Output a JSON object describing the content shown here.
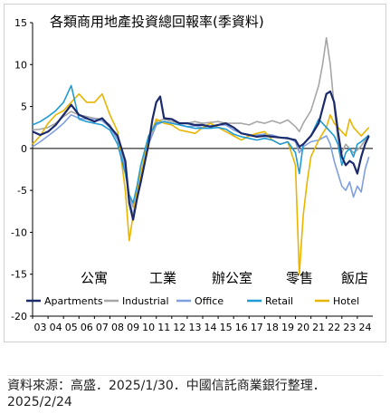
{
  "chart_data": {
    "type": "line",
    "title": "各類商用地產投資總回報率(季資料)",
    "xlabel": "",
    "ylabel": "",
    "ylim": [
      -20,
      15
    ],
    "yticks": [
      15,
      10,
      5,
      0,
      -5,
      -10,
      -15,
      -20
    ],
    "xlim": [
      2003.0,
      2025.0
    ],
    "xtick_labels": [
      "03",
      "04",
      "05",
      "06",
      "07",
      "08",
      "09",
      "10",
      "11",
      "12",
      "13",
      "14",
      "15",
      "16",
      "17",
      "18",
      "19",
      "20",
      "21",
      "22",
      "23",
      "24"
    ],
    "category_labels": [
      "公寓",
      "工業",
      "辦公室",
      "零售",
      "飯店"
    ],
    "grid": false,
    "legend_position": "bottom",
    "series": [
      {
        "name": "Apartments",
        "color": "#1b2a6b",
        "points": [
          [
            2003.0,
            2.0
          ],
          [
            2003.5,
            1.6
          ],
          [
            2004.0,
            2.0
          ],
          [
            2004.5,
            2.8
          ],
          [
            2005.0,
            4.0
          ],
          [
            2005.5,
            5.2
          ],
          [
            2006.0,
            4.0
          ],
          [
            2006.5,
            3.6
          ],
          [
            2007.0,
            3.2
          ],
          [
            2007.5,
            3.6
          ],
          [
            2008.0,
            2.6
          ],
          [
            2008.5,
            1.5
          ],
          [
            2009.0,
            -1.5
          ],
          [
            2009.25,
            -6.5
          ],
          [
            2009.5,
            -8.5
          ],
          [
            2009.75,
            -6.0
          ],
          [
            2010.0,
            -4.0
          ],
          [
            2010.5,
            0.5
          ],
          [
            2010.75,
            3.5
          ],
          [
            2011.0,
            5.5
          ],
          [
            2011.25,
            6.2
          ],
          [
            2011.5,
            3.6
          ],
          [
            2012.0,
            3.5
          ],
          [
            2012.5,
            3.0
          ],
          [
            2013.0,
            3.0
          ],
          [
            2013.5,
            2.8
          ],
          [
            2014.0,
            2.8
          ],
          [
            2014.5,
            2.6
          ],
          [
            2015.0,
            2.8
          ],
          [
            2015.5,
            3.0
          ],
          [
            2016.0,
            2.5
          ],
          [
            2016.5,
            1.8
          ],
          [
            2017.0,
            1.6
          ],
          [
            2017.5,
            1.4
          ],
          [
            2018.0,
            1.5
          ],
          [
            2018.5,
            1.4
          ],
          [
            2019.0,
            1.3
          ],
          [
            2019.5,
            1.2
          ],
          [
            2020.0,
            1.0
          ],
          [
            2020.25,
            0.2
          ],
          [
            2020.5,
            0.5
          ],
          [
            2021.0,
            1.5
          ],
          [
            2021.5,
            3.0
          ],
          [
            2022.0,
            6.5
          ],
          [
            2022.25,
            6.8
          ],
          [
            2022.5,
            5.5
          ],
          [
            2022.75,
            2.0
          ],
          [
            2023.0,
            -1.0
          ],
          [
            2023.25,
            -2.0
          ],
          [
            2023.5,
            -1.5
          ],
          [
            2023.75,
            -1.8
          ],
          [
            2024.0,
            -3.0
          ],
          [
            2024.25,
            -1.0
          ],
          [
            2024.5,
            0.5
          ],
          [
            2024.75,
            1.5
          ]
        ]
      },
      {
        "name": "Industrial",
        "color": "#a6a6a6",
        "points": [
          [
            2003.0,
            2.2
          ],
          [
            2003.5,
            2.3
          ],
          [
            2004.0,
            2.5
          ],
          [
            2004.5,
            3.0
          ],
          [
            2005.0,
            3.8
          ],
          [
            2005.5,
            4.4
          ],
          [
            2006.0,
            4.0
          ],
          [
            2006.5,
            3.8
          ],
          [
            2007.0,
            3.6
          ],
          [
            2007.5,
            3.5
          ],
          [
            2008.0,
            2.8
          ],
          [
            2008.5,
            1.2
          ],
          [
            2009.0,
            -2.0
          ],
          [
            2009.25,
            -5.5
          ],
          [
            2009.5,
            -7.0
          ],
          [
            2009.75,
            -5.5
          ],
          [
            2010.0,
            -3.0
          ],
          [
            2010.5,
            1.0
          ],
          [
            2011.0,
            3.2
          ],
          [
            2011.5,
            3.5
          ],
          [
            2012.0,
            3.2
          ],
          [
            2012.5,
            3.0
          ],
          [
            2013.0,
            3.0
          ],
          [
            2013.5,
            3.2
          ],
          [
            2014.0,
            3.0
          ],
          [
            2014.5,
            3.1
          ],
          [
            2015.0,
            3.2
          ],
          [
            2015.5,
            3.0
          ],
          [
            2016.0,
            3.0
          ],
          [
            2016.5,
            3.0
          ],
          [
            2017.0,
            2.8
          ],
          [
            2017.5,
            3.2
          ],
          [
            2018.0,
            3.0
          ],
          [
            2018.5,
            3.3
          ],
          [
            2019.0,
            3.0
          ],
          [
            2019.5,
            3.4
          ],
          [
            2020.0,
            2.6
          ],
          [
            2020.25,
            2.0
          ],
          [
            2020.5,
            3.0
          ],
          [
            2021.0,
            4.5
          ],
          [
            2021.5,
            7.5
          ],
          [
            2021.75,
            10.0
          ],
          [
            2022.0,
            13.2
          ],
          [
            2022.25,
            10.0
          ],
          [
            2022.5,
            5.0
          ],
          [
            2022.75,
            1.0
          ],
          [
            2023.0,
            -0.5
          ],
          [
            2023.25,
            0.5
          ],
          [
            2023.5,
            0.0
          ],
          [
            2023.75,
            -0.5
          ],
          [
            2024.0,
            -0.2
          ],
          [
            2024.25,
            0.3
          ],
          [
            2024.5,
            1.0
          ],
          [
            2024.75,
            1.4
          ]
        ]
      },
      {
        "name": "Office",
        "color": "#7f9fe0",
        "points": [
          [
            2003.0,
            0.2
          ],
          [
            2003.5,
            0.8
          ],
          [
            2004.0,
            1.5
          ],
          [
            2004.5,
            2.2
          ],
          [
            2005.0,
            3.0
          ],
          [
            2005.5,
            4.0
          ],
          [
            2006.0,
            3.6
          ],
          [
            2006.5,
            3.5
          ],
          [
            2007.0,
            3.5
          ],
          [
            2007.5,
            3.3
          ],
          [
            2008.0,
            2.5
          ],
          [
            2008.5,
            1.0
          ],
          [
            2009.0,
            -2.5
          ],
          [
            2009.25,
            -6.0
          ],
          [
            2009.5,
            -8.0
          ],
          [
            2009.75,
            -6.0
          ],
          [
            2010.0,
            -3.5
          ],
          [
            2010.5,
            0.5
          ],
          [
            2011.0,
            2.8
          ],
          [
            2011.5,
            3.2
          ],
          [
            2012.0,
            3.0
          ],
          [
            2012.5,
            2.8
          ],
          [
            2013.0,
            2.6
          ],
          [
            2013.5,
            2.7
          ],
          [
            2014.0,
            2.5
          ],
          [
            2014.5,
            2.7
          ],
          [
            2015.0,
            2.8
          ],
          [
            2015.5,
            2.8
          ],
          [
            2016.0,
            2.2
          ],
          [
            2016.5,
            1.8
          ],
          [
            2017.0,
            1.6
          ],
          [
            2017.5,
            1.6
          ],
          [
            2018.0,
            1.7
          ],
          [
            2018.5,
            1.6
          ],
          [
            2019.0,
            1.3
          ],
          [
            2019.5,
            1.3
          ],
          [
            2020.0,
            0.8
          ],
          [
            2020.25,
            -0.5
          ],
          [
            2020.5,
            0.2
          ],
          [
            2021.0,
            0.8
          ],
          [
            2021.5,
            1.0
          ],
          [
            2022.0,
            1.5
          ],
          [
            2022.25,
            0.5
          ],
          [
            2022.5,
            -1.5
          ],
          [
            2022.75,
            -3.0
          ],
          [
            2023.0,
            -4.5
          ],
          [
            2023.25,
            -5.0
          ],
          [
            2023.5,
            -4.0
          ],
          [
            2023.75,
            -5.8
          ],
          [
            2024.0,
            -4.5
          ],
          [
            2024.25,
            -5.2
          ],
          [
            2024.5,
            -2.5
          ],
          [
            2024.75,
            -1.0
          ]
        ]
      },
      {
        "name": "Retail",
        "color": "#1f9bd6",
        "points": [
          [
            2003.0,
            2.8
          ],
          [
            2003.5,
            3.2
          ],
          [
            2004.0,
            3.8
          ],
          [
            2004.5,
            4.5
          ],
          [
            2005.0,
            5.5
          ],
          [
            2005.5,
            7.5
          ],
          [
            2006.0,
            3.5
          ],
          [
            2006.5,
            3.2
          ],
          [
            2007.0,
            3.0
          ],
          [
            2007.5,
            2.8
          ],
          [
            2008.0,
            2.2
          ],
          [
            2008.5,
            0.5
          ],
          [
            2009.0,
            -3.0
          ],
          [
            2009.25,
            -5.5
          ],
          [
            2009.5,
            -6.5
          ],
          [
            2009.75,
            -4.5
          ],
          [
            2010.0,
            -2.0
          ],
          [
            2010.5,
            1.5
          ],
          [
            2011.0,
            3.0
          ],
          [
            2011.5,
            3.2
          ],
          [
            2012.0,
            3.0
          ],
          [
            2012.5,
            2.8
          ],
          [
            2013.0,
            2.6
          ],
          [
            2013.5,
            2.4
          ],
          [
            2014.0,
            2.4
          ],
          [
            2014.5,
            2.4
          ],
          [
            2015.0,
            2.5
          ],
          [
            2015.5,
            2.3
          ],
          [
            2016.0,
            1.7
          ],
          [
            2016.5,
            1.4
          ],
          [
            2017.0,
            1.2
          ],
          [
            2017.5,
            1.0
          ],
          [
            2018.0,
            1.2
          ],
          [
            2018.5,
            1.0
          ],
          [
            2019.0,
            0.5
          ],
          [
            2019.5,
            0.8
          ],
          [
            2020.0,
            -0.5
          ],
          [
            2020.25,
            -3.0
          ],
          [
            2020.5,
            0.5
          ],
          [
            2021.0,
            1.5
          ],
          [
            2021.5,
            3.5
          ],
          [
            2022.0,
            2.5
          ],
          [
            2022.25,
            2.0
          ],
          [
            2022.5,
            1.5
          ],
          [
            2022.75,
            0.5
          ],
          [
            2023.0,
            -2.0
          ],
          [
            2023.25,
            -0.5
          ],
          [
            2023.5,
            0.0
          ],
          [
            2023.75,
            -1.0
          ],
          [
            2024.0,
            0.5
          ],
          [
            2024.25,
            0.8
          ],
          [
            2024.5,
            1.2
          ],
          [
            2024.75,
            1.6
          ]
        ]
      },
      {
        "name": "Hotel",
        "color": "#e8b500",
        "points": [
          [
            2003.0,
            0.5
          ],
          [
            2003.5,
            1.5
          ],
          [
            2004.0,
            3.0
          ],
          [
            2004.5,
            4.0
          ],
          [
            2005.0,
            4.5
          ],
          [
            2005.5,
            5.5
          ],
          [
            2006.0,
            6.5
          ],
          [
            2006.5,
            5.5
          ],
          [
            2007.0,
            5.5
          ],
          [
            2007.5,
            6.5
          ],
          [
            2008.0,
            4.0
          ],
          [
            2008.5,
            2.0
          ],
          [
            2009.0,
            -5.0
          ],
          [
            2009.25,
            -11.0
          ],
          [
            2009.5,
            -8.0
          ],
          [
            2009.75,
            -5.0
          ],
          [
            2010.0,
            -3.0
          ],
          [
            2010.5,
            1.0
          ],
          [
            2011.0,
            3.5
          ],
          [
            2011.5,
            3.0
          ],
          [
            2012.0,
            2.8
          ],
          [
            2012.5,
            2.2
          ],
          [
            2013.0,
            2.0
          ],
          [
            2013.5,
            1.8
          ],
          [
            2014.0,
            2.5
          ],
          [
            2014.5,
            3.0
          ],
          [
            2015.0,
            2.5
          ],
          [
            2015.5,
            2.0
          ],
          [
            2016.0,
            1.5
          ],
          [
            2016.5,
            1.0
          ],
          [
            2017.0,
            1.5
          ],
          [
            2017.5,
            1.8
          ],
          [
            2018.0,
            2.0
          ],
          [
            2018.5,
            1.0
          ],
          [
            2019.0,
            0.5
          ],
          [
            2019.5,
            0.8
          ],
          [
            2020.0,
            -2.0
          ],
          [
            2020.25,
            -15.0
          ],
          [
            2020.5,
            -8.0
          ],
          [
            2020.75,
            -4.0
          ],
          [
            2021.0,
            -1.0
          ],
          [
            2021.5,
            1.0
          ],
          [
            2022.0,
            2.5
          ],
          [
            2022.25,
            4.0
          ],
          [
            2022.5,
            3.0
          ],
          [
            2022.75,
            2.5
          ],
          [
            2023.0,
            2.0
          ],
          [
            2023.25,
            1.5
          ],
          [
            2023.5,
            3.5
          ],
          [
            2023.75,
            2.5
          ],
          [
            2024.0,
            2.0
          ],
          [
            2024.25,
            1.5
          ],
          [
            2024.5,
            2.0
          ],
          [
            2024.75,
            2.5
          ]
        ]
      }
    ]
  },
  "source_text": "資料來源：高盛．2025/1/30．中國信託商業銀行整理．2025/2/24"
}
